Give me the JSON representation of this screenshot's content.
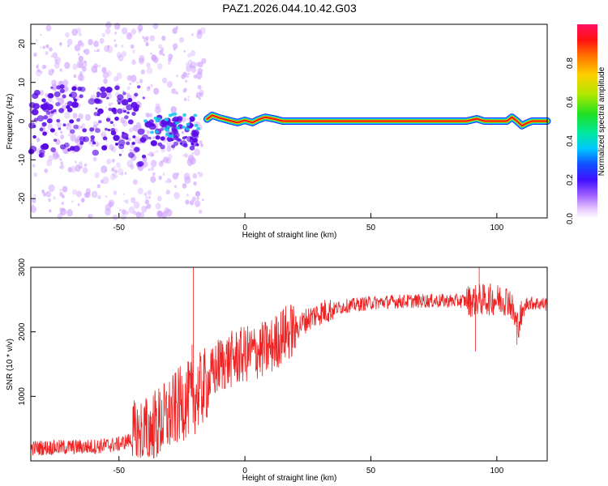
{
  "page_title": "PAZ1.2026.044.10.42.G03",
  "colors": {
    "signal": "#ee1111",
    "snr_line": "#ee2222",
    "scatter_light": "#d2a6ff",
    "scatter_dark": "#5a0be6",
    "axis": "#000000"
  },
  "chart_data": [
    {
      "type": "heatmap",
      "name": "spectrogram",
      "xlabel": "Height of straight line (km)",
      "ylabel": "Frequency (Hz)",
      "xlim": [
        -85,
        120
      ],
      "ylim": [
        -25,
        25
      ],
      "x_ticks": [
        -50,
        0,
        50,
        100
      ],
      "y_ticks": [
        -20,
        -10,
        0,
        10,
        20
      ],
      "dominant_frequency_hz": 0,
      "scatter_region_km": [
        -85,
        -18
      ],
      "signal_start_km": -15,
      "signal_wobble_points": [
        {
          "x": -15,
          "y": 0.5
        },
        {
          "x": -13,
          "y": 1.5
        },
        {
          "x": -10,
          "y": 0.8
        },
        {
          "x": -7,
          "y": 0.3
        },
        {
          "x": -3,
          "y": -0.4
        },
        {
          "x": 0,
          "y": 0.2
        },
        {
          "x": 3,
          "y": -0.4
        },
        {
          "x": 5,
          "y": 0.3
        },
        {
          "x": 8,
          "y": 1.0
        },
        {
          "x": 12,
          "y": 0.5
        },
        {
          "x": 15,
          "y": 0
        },
        {
          "x": 88,
          "y": 0
        },
        {
          "x": 92,
          "y": 0.6
        },
        {
          "x": 95,
          "y": 0
        },
        {
          "x": 104,
          "y": 0
        },
        {
          "x": 106,
          "y": 1.0
        },
        {
          "x": 108,
          "y": 0
        },
        {
          "x": 110,
          "y": -1.2
        },
        {
          "x": 112,
          "y": -0.5
        },
        {
          "x": 114,
          "y": 0
        },
        {
          "x": 120,
          "y": 0
        }
      ]
    },
    {
      "type": "colorbar",
      "name": "amplitude-colorbar",
      "label": "Normalized spectral amplitude",
      "range": [
        0,
        1
      ],
      "ticks": [
        0.0,
        0.2,
        0.4,
        0.6,
        0.8
      ],
      "tick_labels": [
        "0.0",
        "0.2",
        "0.4",
        "0.6",
        "0.8"
      ]
    },
    {
      "type": "line",
      "name": "snr",
      "xlabel": "Height of straight line (km)",
      "ylabel": "SNR (10 * v/v)",
      "xlim": [
        -85,
        120
      ],
      "ylim": [
        0,
        3000
      ],
      "x_ticks": [
        -50,
        0,
        50,
        100
      ],
      "y_ticks": [
        1000,
        2000,
        3000
      ],
      "trend": [
        {
          "x": -85,
          "y": 200
        },
        {
          "x": -60,
          "y": 220
        },
        {
          "x": -50,
          "y": 260
        },
        {
          "x": -40,
          "y": 400
        },
        {
          "x": -30,
          "y": 700
        },
        {
          "x": -25,
          "y": 900
        },
        {
          "x": -20,
          "y": 1000
        },
        {
          "x": -15,
          "y": 1200
        },
        {
          "x": -10,
          "y": 1500
        },
        {
          "x": 0,
          "y": 1650
        },
        {
          "x": 10,
          "y": 1750
        },
        {
          "x": 15,
          "y": 1950
        },
        {
          "x": 20,
          "y": 2050
        },
        {
          "x": 25,
          "y": 2200
        },
        {
          "x": 30,
          "y": 2300
        },
        {
          "x": 40,
          "y": 2400
        },
        {
          "x": 50,
          "y": 2450
        },
        {
          "x": 60,
          "y": 2470
        },
        {
          "x": 70,
          "y": 2480
        },
        {
          "x": 90,
          "y": 2480
        },
        {
          "x": 95,
          "y": 2500
        },
        {
          "x": 105,
          "y": 2500
        },
        {
          "x": 108,
          "y": 2100
        },
        {
          "x": 112,
          "y": 2450
        },
        {
          "x": 120,
          "y": 2430
        }
      ],
      "spikes": [
        {
          "x": -20.5,
          "y": 3000
        },
        {
          "x": -21,
          "y": 1800
        },
        {
          "x": 93,
          "y": 3000
        },
        {
          "x": 91.5,
          "y": 1700
        },
        {
          "x": 108,
          "y": 1800
        }
      ]
    }
  ]
}
